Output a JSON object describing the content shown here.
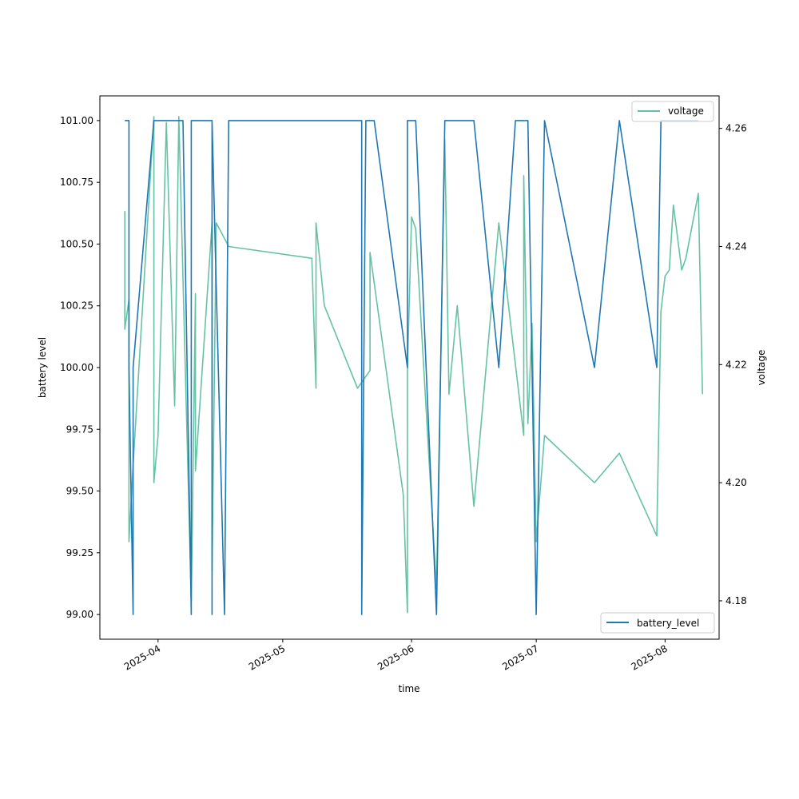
{
  "chart_data": {
    "type": "line",
    "title": "",
    "xlabel": "time",
    "ylabel_left": "battery level",
    "ylabel_right": "voltage",
    "x_range": [
      "2025-03-18",
      "2025-08-14"
    ],
    "ylim_left": [
      98.9,
      101.1
    ],
    "ylim_right": [
      4.1735,
      4.2655
    ],
    "x_ticks": [
      {
        "date": "2025-04-01",
        "label": "2025-04"
      },
      {
        "date": "2025-05-01",
        "label": "2025-05"
      },
      {
        "date": "2025-06-01",
        "label": "2025-06"
      },
      {
        "date": "2025-07-01",
        "label": "2025-07"
      },
      {
        "date": "2025-08-01",
        "label": "2025-08"
      }
    ],
    "y_ticks_left": [
      {
        "value": 99.0,
        "label": "99.00"
      },
      {
        "value": 99.25,
        "label": "99.25"
      },
      {
        "value": 99.5,
        "label": "99.50"
      },
      {
        "value": 99.75,
        "label": "99.75"
      },
      {
        "value": 100.0,
        "label": "100.00"
      },
      {
        "value": 100.25,
        "label": "100.25"
      },
      {
        "value": 100.5,
        "label": "100.50"
      },
      {
        "value": 100.75,
        "label": "100.75"
      },
      {
        "value": 101.0,
        "label": "101.00"
      }
    ],
    "y_ticks_right": [
      {
        "value": 4.18,
        "label": "4.18"
      },
      {
        "value": 4.2,
        "label": "4.20"
      },
      {
        "value": 4.22,
        "label": "4.22"
      },
      {
        "value": 4.24,
        "label": "4.24"
      },
      {
        "value": 4.26,
        "label": "4.26"
      }
    ],
    "series": [
      {
        "name": "battery_level",
        "axis": "left",
        "color": "#1f77b4",
        "legend_position": "lower-right",
        "x": [
          "2025-03-24",
          "2025-03-25",
          "2025-03-25",
          "2025-03-26",
          "2025-03-26",
          "2025-03-26",
          "2025-03-31",
          "2025-03-31",
          "2025-04-07",
          "2025-04-09",
          "2025-04-09",
          "2025-04-10",
          "2025-04-14",
          "2025-04-14",
          "2025-04-14",
          "2025-04-14",
          "2025-04-17",
          "2025-04-18",
          "2025-05-20",
          "2025-05-20",
          "2025-05-21",
          "2025-05-23",
          "2025-05-31",
          "2025-05-31",
          "2025-05-31",
          "2025-06-02",
          "2025-06-07",
          "2025-06-09",
          "2025-06-09",
          "2025-06-16",
          "2025-06-22",
          "2025-06-26",
          "2025-06-29",
          "2025-07-01",
          "2025-07-03",
          "2025-07-15",
          "2025-07-21",
          "2025-07-30",
          "2025-07-31",
          "2025-08-09"
        ],
        "y": [
          101,
          101,
          100,
          99,
          99.26,
          100,
          101,
          101,
          101,
          99,
          101,
          101,
          101,
          99,
          99,
          101,
          99,
          101,
          101,
          99,
          101,
          101,
          100,
          100,
          101,
          101,
          99,
          101,
          101,
          101,
          100,
          101,
          101,
          99,
          101,
          100,
          101,
          100,
          101,
          101
        ]
      },
      {
        "name": "voltage",
        "axis": "right",
        "color": "#66c2a5",
        "legend_position": "upper-right",
        "x": [
          "2025-03-24",
          "2025-03-24",
          "2025-03-25",
          "2025-03-25",
          "2025-03-26",
          "2025-03-31",
          "2025-03-31",
          "2025-04-01",
          "2025-04-03",
          "2025-04-05",
          "2025-04-06",
          "2025-04-09",
          "2025-04-10",
          "2025-04-10",
          "2025-04-14",
          "2025-04-14",
          "2025-04-15",
          "2025-04-18",
          "2025-05-08",
          "2025-05-09",
          "2025-05-09",
          "2025-05-11",
          "2025-05-19",
          "2025-05-20",
          "2025-05-22",
          "2025-05-22",
          "2025-05-30",
          "2025-05-31",
          "2025-05-31",
          "2025-06-01",
          "2025-06-02",
          "2025-06-07",
          "2025-06-09",
          "2025-06-10",
          "2025-06-12",
          "2025-06-16",
          "2025-06-22",
          "2025-06-28",
          "2025-06-28",
          "2025-06-29",
          "2025-06-30",
          "2025-07-01",
          "2025-07-03",
          "2025-07-15",
          "2025-07-21",
          "2025-07-30",
          "2025-07-31",
          "2025-08-01",
          "2025-08-02",
          "2025-08-03",
          "2025-08-05",
          "2025-08-06",
          "2025-08-09",
          "2025-08-10"
        ],
        "y": [
          4.246,
          4.226,
          4.231,
          4.19,
          4.203,
          4.262,
          4.2,
          4.208,
          4.261,
          4.213,
          4.262,
          4.18,
          4.232,
          4.202,
          4.244,
          4.185,
          4.244,
          4.24,
          4.238,
          4.216,
          4.244,
          4.23,
          4.216,
          4.217,
          4.219,
          4.239,
          4.198,
          4.178,
          4.219,
          4.245,
          4.243,
          4.182,
          4.258,
          4.215,
          4.23,
          4.196,
          4.244,
          4.208,
          4.252,
          4.21,
          4.227,
          4.19,
          4.208,
          4.2,
          4.205,
          4.191,
          4.229,
          4.235,
          4.236,
          4.247,
          4.236,
          4.238,
          4.249,
          4.215
        ]
      }
    ]
  }
}
